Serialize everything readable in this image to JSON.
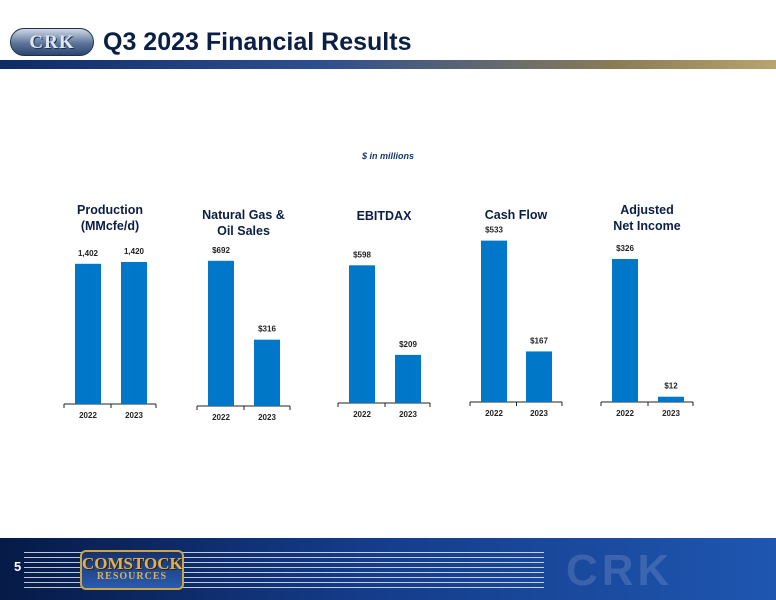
{
  "page": {
    "title": "Q3 2023 Financial Results",
    "subtitle": "$ in millions",
    "page_number": "5"
  },
  "header": {
    "logo_icon": "crk-logo-icon",
    "logo_text": "CRK"
  },
  "footer": {
    "logo_icon": "comstock-resources-logo-icon",
    "logo_top": "COMSTOCK",
    "logo_bottom": "RESOURCES",
    "watermark_icon": "crk-watermark-icon",
    "watermark_text": "CRK"
  },
  "colors": {
    "bar": "#0077c8",
    "title": "#0b1e45",
    "subtitle": "#17386f",
    "footer": "#1f56b0"
  },
  "chart_data": [
    {
      "type": "bar",
      "title": [
        "Production",
        "(MMcfe/d)"
      ],
      "categories": [
        "2022",
        "2023"
      ],
      "values": [
        1402,
        1420
      ],
      "labels": [
        "1,402",
        "1,420"
      ],
      "ylim": [
        0,
        1750
      ]
    },
    {
      "type": "bar",
      "title": [
        "Natural Gas &",
        "Oil Sales"
      ],
      "categories": [
        "2022",
        "2023"
      ],
      "values": [
        692,
        316
      ],
      "labels": [
        "$692",
        "$316"
      ],
      "ylim": [
        0,
        834
      ]
    },
    {
      "type": "bar",
      "title": [
        "EBITDAX"
      ],
      "categories": [
        "2022",
        "2023"
      ],
      "values": [
        598,
        209
      ],
      "labels": [
        "$598",
        "$209"
      ],
      "ylim": [
        0,
        760
      ]
    },
    {
      "type": "bar",
      "title": [
        "Cash Flow"
      ],
      "categories": [
        "2022",
        "2023"
      ],
      "values": [
        533,
        167
      ],
      "labels": [
        "$533",
        "$167"
      ],
      "ylim": [
        0,
        578
      ]
    },
    {
      "type": "bar",
      "title": [
        "Adjusted",
        "Net Income"
      ],
      "categories": [
        "2022",
        "2023"
      ],
      "values": [
        326,
        12
      ],
      "labels": [
        "$326",
        "$12"
      ],
      "ylim": [
        0,
        399
      ]
    }
  ]
}
